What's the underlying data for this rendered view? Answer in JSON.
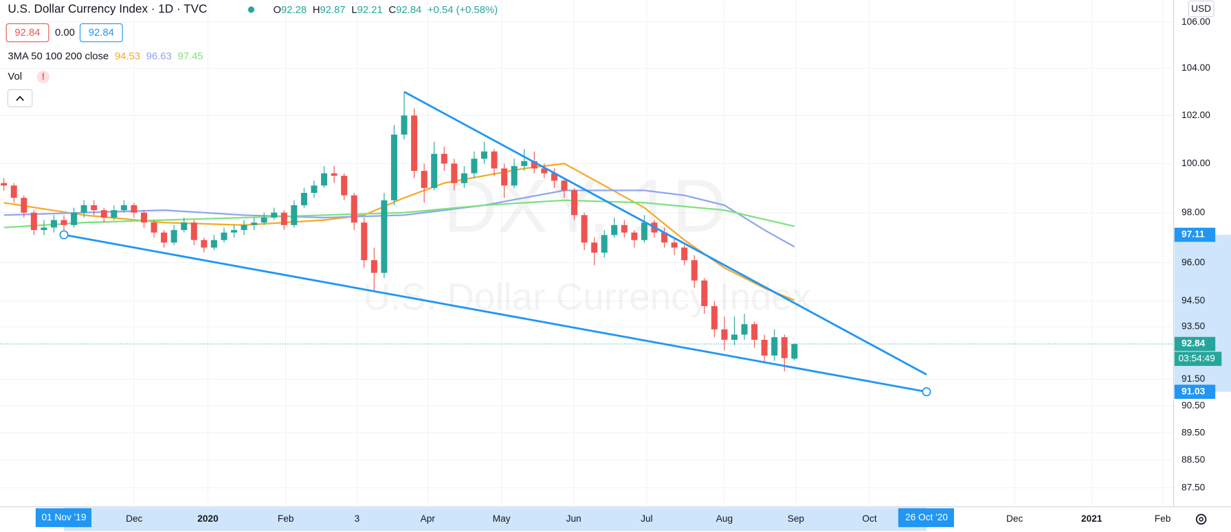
{
  "header": {
    "title": "U.S. Dollar Currency Index · 1D · TVC",
    "ohlc_labels": [
      "O",
      "H",
      "L",
      "C"
    ],
    "change": "+0.54 (+0.58%)",
    "bid": "92.84",
    "spread": "0.00",
    "ask": "92.84",
    "indicator_name": "3MA 50 100 200 close",
    "volume_label": "Vol",
    "warning": "!"
  },
  "currency": "USD",
  "watermark": {
    "symbol": "DXY, 1D",
    "description": "U.S. Dollar Currency Index"
  },
  "countdown": "03:54:49",
  "chart_data": {
    "type": "candlestick",
    "log_scale": true,
    "grid": true,
    "up_color": "#26a69a",
    "down_color": "#ef5350",
    "candles": [
      [
        99.2,
        99.4,
        98.9,
        99.1
      ],
      [
        99.1,
        99.2,
        98.4,
        98.6
      ],
      [
        98.6,
        98.7,
        97.8,
        98.0
      ],
      [
        98.0,
        98.1,
        97.1,
        97.3
      ],
      [
        97.3,
        97.7,
        97.1,
        97.4
      ],
      [
        97.4,
        97.9,
        97.2,
        97.7
      ],
      [
        97.7,
        97.9,
        97.2,
        97.5
      ],
      [
        97.5,
        98.2,
        97.4,
        98.0
      ],
      [
        98.0,
        98.5,
        97.8,
        98.3
      ],
      [
        98.3,
        98.5,
        97.9,
        98.1
      ],
      [
        98.1,
        98.2,
        97.6,
        97.8
      ],
      [
        97.8,
        98.3,
        97.7,
        98.1
      ],
      [
        98.1,
        98.5,
        98.0,
        98.3
      ],
      [
        98.3,
        98.4,
        97.8,
        98.0
      ],
      [
        98.0,
        98.1,
        97.4,
        97.6
      ],
      [
        97.6,
        97.7,
        97.0,
        97.2
      ],
      [
        97.2,
        97.3,
        96.6,
        96.8
      ],
      [
        96.8,
        97.5,
        96.7,
        97.3
      ],
      [
        97.3,
        97.8,
        97.2,
        97.6
      ],
      [
        97.6,
        97.7,
        96.7,
        96.9
      ],
      [
        96.9,
        97.0,
        96.4,
        96.6
      ],
      [
        96.6,
        97.1,
        96.5,
        96.9
      ],
      [
        96.9,
        97.4,
        96.8,
        97.2
      ],
      [
        97.2,
        97.5,
        97.0,
        97.3
      ],
      [
        97.3,
        97.7,
        97.1,
        97.5
      ],
      [
        97.5,
        97.8,
        97.3,
        97.6
      ],
      [
        97.6,
        98.0,
        97.5,
        97.8
      ],
      [
        97.8,
        98.2,
        97.7,
        98.0
      ],
      [
        98.0,
        98.1,
        97.3,
        97.5
      ],
      [
        97.5,
        98.5,
        97.4,
        98.3
      ],
      [
        98.3,
        99.0,
        98.2,
        98.8
      ],
      [
        98.8,
        99.3,
        98.6,
        99.1
      ],
      [
        99.1,
        99.9,
        99.0,
        99.6
      ],
      [
        99.6,
        99.9,
        99.2,
        99.5
      ],
      [
        99.5,
        99.6,
        98.5,
        98.7
      ],
      [
        98.7,
        98.8,
        97.3,
        97.6
      ],
      [
        97.6,
        97.8,
        95.8,
        96.1
      ],
      [
        96.1,
        96.6,
        94.9,
        95.6
      ],
      [
        95.6,
        98.8,
        95.4,
        98.5
      ],
      [
        98.5,
        101.6,
        98.3,
        101.2
      ],
      [
        101.2,
        103.0,
        101.0,
        102.0
      ],
      [
        102.0,
        102.3,
        99.4,
        99.7
      ],
      [
        99.7,
        100.0,
        98.4,
        99.0
      ],
      [
        99.0,
        100.9,
        98.9,
        100.4
      ],
      [
        100.4,
        100.7,
        99.7,
        100.0
      ],
      [
        100.0,
        100.2,
        98.9,
        99.2
      ],
      [
        99.2,
        99.9,
        99.0,
        99.6
      ],
      [
        99.6,
        100.5,
        99.4,
        100.2
      ],
      [
        100.2,
        100.9,
        100.0,
        100.5
      ],
      [
        100.5,
        100.6,
        99.5,
        99.8
      ],
      [
        99.8,
        100.0,
        98.6,
        99.1
      ],
      [
        99.1,
        100.2,
        99.0,
        99.9
      ],
      [
        99.9,
        100.6,
        99.7,
        100.1
      ],
      [
        100.1,
        100.5,
        99.6,
        99.8
      ],
      [
        99.8,
        100.0,
        99.4,
        99.6
      ],
      [
        99.6,
        99.8,
        99.0,
        99.3
      ],
      [
        99.3,
        99.4,
        98.6,
        98.9
      ],
      [
        98.9,
        99.0,
        97.7,
        97.9
      ],
      [
        97.9,
        98.0,
        96.5,
        96.8
      ],
      [
        96.8,
        97.0,
        95.9,
        96.4
      ],
      [
        96.4,
        97.3,
        96.2,
        97.1
      ],
      [
        97.1,
        97.8,
        97.0,
        97.5
      ],
      [
        97.5,
        97.7,
        97.0,
        97.2
      ],
      [
        97.2,
        97.3,
        96.6,
        96.9
      ],
      [
        96.9,
        97.9,
        96.8,
        97.6
      ],
      [
        97.6,
        97.7,
        97.0,
        97.2
      ],
      [
        97.2,
        97.4,
        96.6,
        96.8
      ],
      [
        96.8,
        97.0,
        96.3,
        96.6
      ],
      [
        96.6,
        96.7,
        95.9,
        96.1
      ],
      [
        96.1,
        96.3,
        95.0,
        95.3
      ],
      [
        95.3,
        95.4,
        94.0,
        94.3
      ],
      [
        94.3,
        94.5,
        93.1,
        93.4
      ],
      [
        93.4,
        93.9,
        92.6,
        93.0
      ],
      [
        93.0,
        93.9,
        92.8,
        93.2
      ],
      [
        93.2,
        94.0,
        93.0,
        93.6
      ],
      [
        93.6,
        93.7,
        92.7,
        93.0
      ],
      [
        93.0,
        93.2,
        92.1,
        92.4
      ],
      [
        92.4,
        93.4,
        92.2,
        93.1
      ],
      [
        93.1,
        93.2,
        91.8,
        92.3
      ],
      [
        92.28,
        92.87,
        92.21,
        92.84
      ]
    ],
    "ylim": [
      86.85,
      106.96
    ],
    "yticks": [
      {
        "value": 106,
        "label": "106.00"
      },
      {
        "value": 104,
        "label": "104.00"
      },
      {
        "value": 102,
        "label": "102.00"
      },
      {
        "value": 100,
        "label": "100.00"
      },
      {
        "value": 98,
        "label": "98.00"
      },
      {
        "value": 96,
        "label": "96.00"
      },
      {
        "value": 94.5,
        "label": "94.50"
      },
      {
        "value": 93.5,
        "label": "93.50"
      },
      {
        "value": 91.5,
        "label": "91.50"
      },
      {
        "value": 90.5,
        "label": "90.50"
      },
      {
        "value": 89.5,
        "label": "89.50"
      },
      {
        "value": 88.5,
        "label": "88.50"
      },
      {
        "value": 87.5,
        "label": "87.50"
      }
    ],
    "xlim": [
      -0.39,
      116.9
    ],
    "xticks": [
      {
        "value": 13.02,
        "label": "Dec"
      },
      {
        "value": 20.39,
        "label": "2020"
      },
      {
        "value": 28.16,
        "label": "Feb"
      },
      {
        "value": 35.29,
        "label": "3"
      },
      {
        "value": 42.35,
        "label": "Apr"
      },
      {
        "value": 49.73,
        "label": "May"
      },
      {
        "value": 56.94,
        "label": "Jun"
      },
      {
        "value": 64.24,
        "label": "Jul"
      },
      {
        "value": 72.0,
        "label": "Aug"
      },
      {
        "value": 79.14,
        "label": "Sep"
      },
      {
        "value": 86.5,
        "label": "Oct"
      },
      {
        "value": 101.0,
        "label": "Dec"
      },
      {
        "value": 108.7,
        "label": "2021"
      },
      {
        "value": 115.8,
        "label": "Feb"
      }
    ],
    "moving_averages": [
      {
        "color": "#f7a928",
        "x": [
          0,
          8,
          16,
          24,
          32,
          36,
          40,
          44,
          48,
          52,
          56,
          60,
          64,
          68,
          72,
          76,
          79
        ],
        "values": [
          98.4,
          97.9,
          97.6,
          97.5,
          97.7,
          97.9,
          98.6,
          99.2,
          99.5,
          99.8,
          100.0,
          99.1,
          98.2,
          96.9,
          95.8,
          95.0,
          94.53
        ]
      },
      {
        "color": "#8fa6ef",
        "x": [
          0,
          8,
          16,
          24,
          32,
          40,
          48,
          56,
          64,
          68,
          72,
          76,
          79
        ],
        "values": [
          97.9,
          98.0,
          98.1,
          97.9,
          97.8,
          97.9,
          98.3,
          98.9,
          98.9,
          98.7,
          98.3,
          97.3,
          96.63
        ]
      },
      {
        "color": "#7ee27e",
        "x": [
          0,
          8,
          16,
          24,
          32,
          40,
          48,
          56,
          64,
          72,
          79
        ],
        "values": [
          97.4,
          97.6,
          97.7,
          97.8,
          97.9,
          98.0,
          98.3,
          98.5,
          98.4,
          98.1,
          97.45
        ]
      }
    ],
    "trend_lines": [
      {
        "color": "#2196f3",
        "x": [
          40,
          92.2
        ],
        "y": [
          103.0,
          91.68
        ]
      },
      {
        "color": "#2196f3",
        "x": [
          6,
          92.2
        ],
        "y": [
          97.11,
          91.03
        ],
        "x_labels": [
          "01 Nov '19",
          "26 Oct '20"
        ]
      }
    ]
  }
}
